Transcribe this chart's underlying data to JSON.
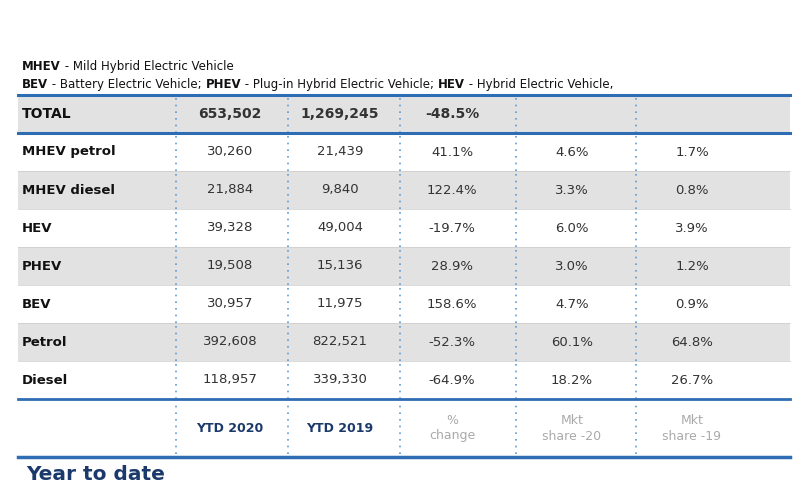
{
  "title": "Year to date",
  "headers": [
    "",
    "YTD 2020",
    "YTD 2019",
    "%\nchange",
    "Mkt\nshare -20",
    "Mkt\nshare -19"
  ],
  "rows": [
    {
      "label": "Diesel",
      "ytd2020": "118,957",
      "ytd2019": "339,330",
      "pct": "-64.9%",
      "mkt20": "18.2%",
      "mkt19": "26.7%",
      "shaded": false
    },
    {
      "label": "Petrol",
      "ytd2020": "392,608",
      "ytd2019": "822,521",
      "pct": "-52.3%",
      "mkt20": "60.1%",
      "mkt19": "64.8%",
      "shaded": true
    },
    {
      "label": "BEV",
      "ytd2020": "30,957",
      "ytd2019": "11,975",
      "pct": "158.6%",
      "mkt20": "4.7%",
      "mkt19": "0.9%",
      "shaded": false
    },
    {
      "label": "PHEV",
      "ytd2020": "19,508",
      "ytd2019": "15,136",
      "pct": "28.9%",
      "mkt20": "3.0%",
      "mkt19": "1.2%",
      "shaded": true
    },
    {
      "label": "HEV",
      "ytd2020": "39,328",
      "ytd2019": "49,004",
      "pct": "-19.7%",
      "mkt20": "6.0%",
      "mkt19": "3.9%",
      "shaded": false
    },
    {
      "label": "MHEV diesel",
      "ytd2020": "21,884",
      "ytd2019": "9,840",
      "pct": "122.4%",
      "mkt20": "3.3%",
      "mkt19": "0.8%",
      "shaded": true
    },
    {
      "label": "MHEV petrol",
      "ytd2020": "30,260",
      "ytd2019": "21,439",
      "pct": "41.1%",
      "mkt20": "4.6%",
      "mkt19": "1.7%",
      "shaded": false
    }
  ],
  "total_row": {
    "label": "TOTAL",
    "ytd2020": "653,502",
    "ytd2019": "1,269,245",
    "pct": "-48.5%",
    "mkt20": "",
    "mkt19": ""
  },
  "colors": {
    "title_text": "#1b3a6b",
    "header_bold_text": "#1b3a6b",
    "header_gray_text": "#aaaaaa",
    "body_text": "#333333",
    "label_text": "#111111",
    "shaded_bg": "#e2e2e2",
    "white_bg": "#ffffff",
    "total_bg": "#d4d4d4",
    "blue_line": "#2e6db4",
    "dotted_line": "#5b9bd5",
    "bg": "#ffffff"
  },
  "footnote": [
    [
      {
        "text": "BEV",
        "bold": true
      },
      {
        "text": " - Battery Electric Vehicle; ",
        "bold": false
      },
      {
        "text": "PHEV",
        "bold": true
      },
      {
        "text": " - Plug-in Hybrid Electric Vehicle; ",
        "bold": false
      },
      {
        "text": "HEV",
        "bold": true
      },
      {
        "text": " - Hybrid Electric Vehicle,",
        "bold": false
      }
    ],
    [
      {
        "text": "MHEV",
        "bold": true
      },
      {
        "text": " - Mild Hybrid Electric Vehicle",
        "bold": false
      }
    ]
  ]
}
